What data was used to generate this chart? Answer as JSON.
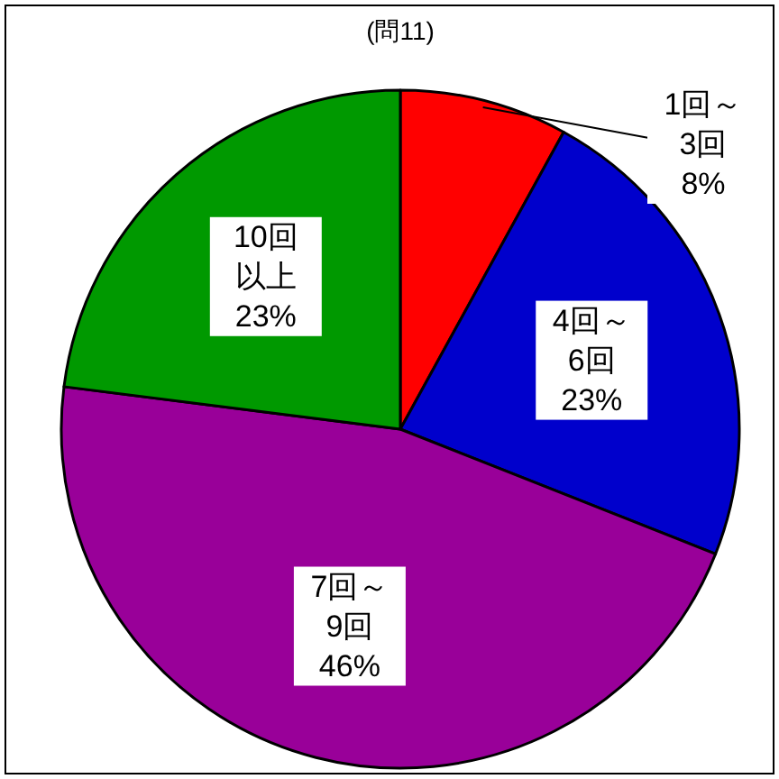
{
  "chart_data": {
    "type": "pie",
    "title": "(問11)",
    "categories": [
      "1回～3回",
      "4回～6回",
      "7回～9回",
      "10回以上"
    ],
    "values": [
      8,
      23,
      46,
      23
    ],
    "value_labels": [
      "8%",
      "23%",
      "46%",
      "23%"
    ],
    "colors": [
      "#ff0000",
      "#0000cc",
      "#990099",
      "#009900"
    ]
  }
}
